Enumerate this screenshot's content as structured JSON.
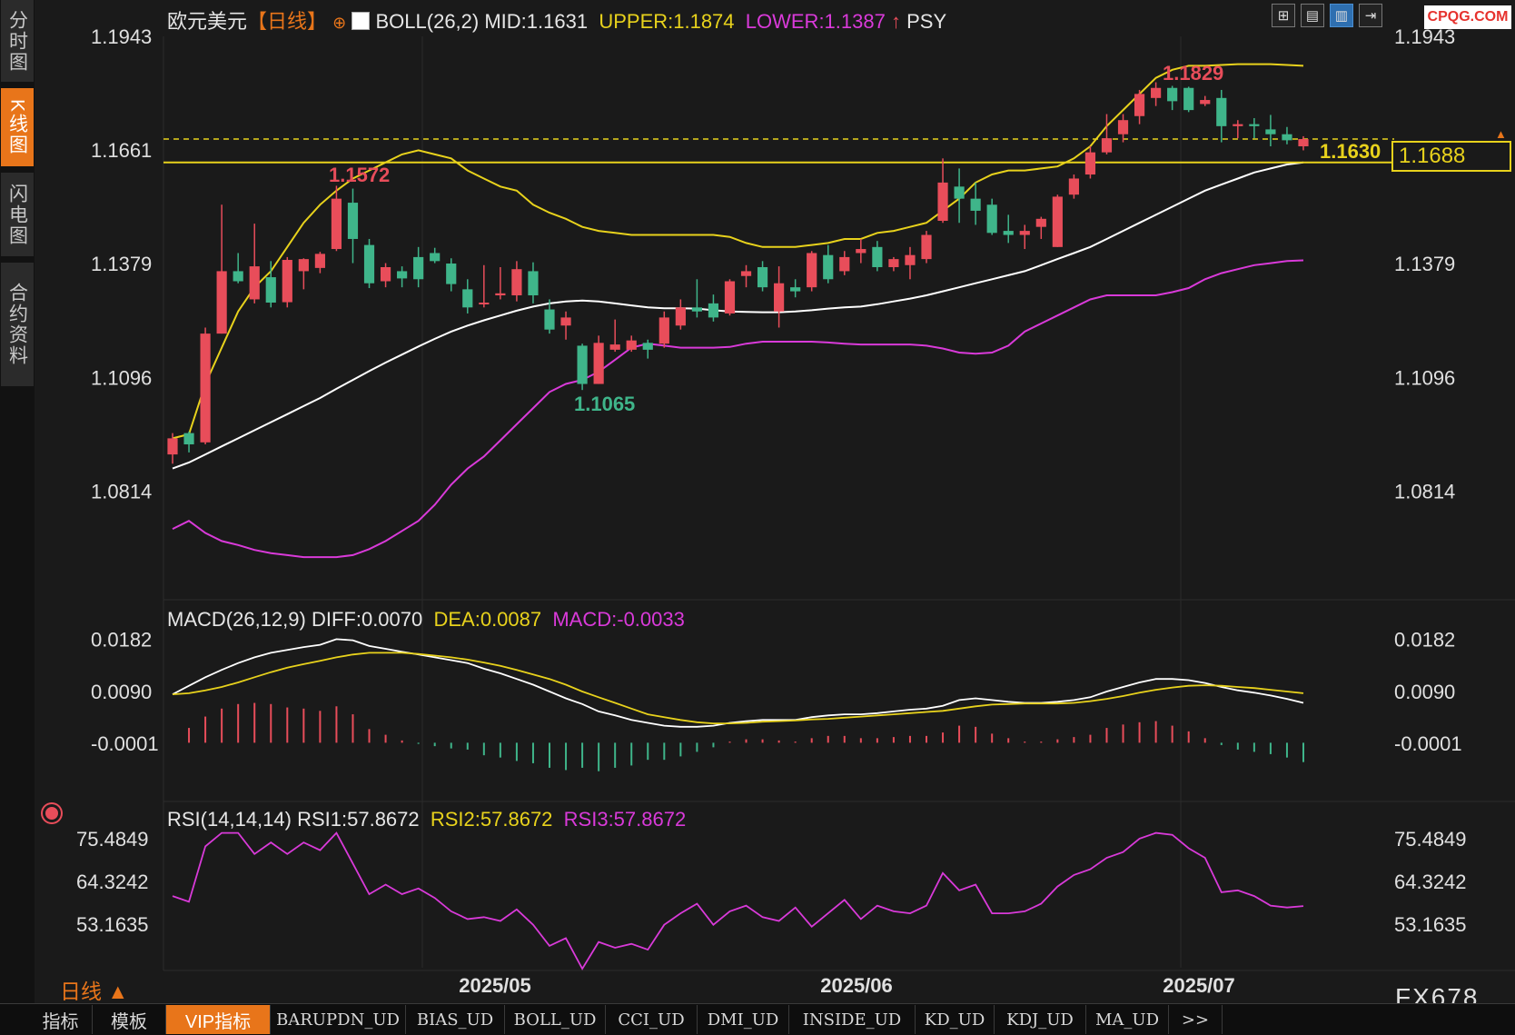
{
  "left_tabs": [
    {
      "label": "分时图",
      "active": false
    },
    {
      "label": "K线图",
      "active": true
    },
    {
      "label": "闪电图",
      "active": false
    },
    {
      "label": "合约资料",
      "active": false
    }
  ],
  "header": {
    "symbol": "欧元美元",
    "period_bracket": "【日线】",
    "indicator": "BOLL(26,2)",
    "mid": "MID:1.1631",
    "upper": "UPPER:1.1874",
    "lower": "LOWER:1.1387",
    "psy": "PSY"
  },
  "toolbar_icons": [
    "grid-layout-icon",
    "chart-layout-icon",
    "chart-active-icon",
    "chart-arrow-icon"
  ],
  "watermark": "CPQG.COM",
  "price_axis": {
    "labels": [
      "1.1943",
      "1.1661",
      "1.1379",
      "1.1096",
      "1.0814"
    ]
  },
  "current_price": "1.1688",
  "annotations": {
    "high": "1.1829",
    "swing_high": "1.1572",
    "low": "1.1065",
    "last": "1.1630"
  },
  "macd": {
    "title": "MACD(26,12,9)",
    "diff": "DIFF:0.0070",
    "dea": "DEA:0.0087",
    "macd": "MACD:-0.0033",
    "axis": [
      "0.0182",
      "0.0090",
      "-0.0001"
    ]
  },
  "rsi": {
    "title": "RSI(14,14,14)",
    "rsi1": "RSI1:57.8672",
    "rsi2": "RSI2:57.8672",
    "rsi3": "RSI3:57.8672",
    "axis": [
      "75.4849",
      "64.3242",
      "53.1635"
    ]
  },
  "x_axis": [
    "2025/05",
    "2025/06",
    "2025/07"
  ],
  "period_label": "日线 ▲",
  "brand": "FX678",
  "bottom_tabs": [
    "指标",
    "模板",
    "VIP指标",
    "BARUPDN_UD",
    "BIAS_UD",
    "BOLL_UD",
    "CCI_UD",
    "DMI_UD",
    "INSIDE_UD",
    "KD_UD",
    "KDJ_UD",
    "MA_UD",
    ">>"
  ],
  "colors": {
    "up": "#e84d5a",
    "down": "#3fb58a",
    "mid": "#ffffff",
    "upper": "#e8d21c",
    "lower": "#d93ad9",
    "accent": "#e8751a"
  },
  "chart_data": {
    "type": "candlestick",
    "candles": [
      [
        1.0905,
        1.0958,
        1.0882,
        1.0945
      ],
      [
        1.0958,
        1.0962,
        1.091,
        1.093
      ],
      [
        1.0935,
        1.122,
        1.093,
        1.1205
      ],
      [
        1.1205,
        1.1525,
        1.1205,
        1.136
      ],
      [
        1.136,
        1.1405,
        1.133,
        1.1335
      ],
      [
        1.129,
        1.1478,
        1.128,
        1.1372
      ],
      [
        1.1345,
        1.1385,
        1.127,
        1.1282
      ],
      [
        1.1283,
        1.1395,
        1.127,
        1.1388
      ],
      [
        1.136,
        1.1392,
        1.1315,
        1.139
      ],
      [
        1.1368,
        1.1408,
        1.1355,
        1.1403
      ],
      [
        1.1415,
        1.1572,
        1.141,
        1.154
      ],
      [
        1.153,
        1.1565,
        1.138,
        1.144
      ],
      [
        1.1425,
        1.144,
        1.1318,
        1.133
      ],
      [
        1.1335,
        1.138,
        1.132,
        1.137
      ],
      [
        1.136,
        1.1372,
        1.132,
        1.1342
      ],
      [
        1.1395,
        1.142,
        1.132,
        1.134
      ],
      [
        1.1405,
        1.1418,
        1.138,
        1.1385
      ],
      [
        1.1379,
        1.1392,
        1.131,
        1.1328
      ],
      [
        1.1315,
        1.134,
        1.1255,
        1.127
      ],
      [
        1.128,
        1.1375,
        1.127,
        1.1282
      ],
      [
        1.13,
        1.137,
        1.129,
        1.1305
      ],
      [
        1.13,
        1.1385,
        1.1285,
        1.1365
      ],
      [
        1.136,
        1.1382,
        1.128,
        1.13
      ],
      [
        1.1265,
        1.129,
        1.1205,
        1.1215
      ],
      [
        1.1225,
        1.126,
        1.119,
        1.1245
      ],
      [
        1.1175,
        1.118,
        1.1065,
        1.108
      ],
      [
        1.108,
        1.12,
        1.108,
        1.1182
      ],
      [
        1.1165,
        1.124,
        1.116,
        1.1178
      ],
      [
        1.1165,
        1.12,
        1.116,
        1.1188
      ],
      [
        1.1182,
        1.119,
        1.1143,
        1.1165
      ],
      [
        1.118,
        1.126,
        1.117,
        1.1245
      ],
      [
        1.1225,
        1.129,
        1.1215,
        1.127
      ],
      [
        1.127,
        1.134,
        1.1245,
        1.126
      ],
      [
        1.128,
        1.1302,
        1.1235,
        1.1245
      ],
      [
        1.1255,
        1.134,
        1.125,
        1.1335
      ],
      [
        1.1348,
        1.1375,
        1.132,
        1.136
      ],
      [
        1.137,
        1.1385,
        1.131,
        1.132
      ],
      [
        1.126,
        1.1372,
        1.122,
        1.133
      ],
      [
        1.132,
        1.134,
        1.1295,
        1.131
      ],
      [
        1.132,
        1.141,
        1.131,
        1.1405
      ],
      [
        1.14,
        1.1425,
        1.133,
        1.134
      ],
      [
        1.136,
        1.141,
        1.135,
        1.1395
      ],
      [
        1.1405,
        1.144,
        1.138,
        1.1415
      ],
      [
        1.142,
        1.1435,
        1.136,
        1.137
      ],
      [
        1.137,
        1.1395,
        1.136,
        1.139
      ],
      [
        1.1375,
        1.142,
        1.134,
        1.14
      ],
      [
        1.139,
        1.146,
        1.138,
        1.145
      ],
      [
        1.1485,
        1.164,
        1.148,
        1.158
      ],
      [
        1.157,
        1.1615,
        1.148,
        1.154
      ],
      [
        1.154,
        1.158,
        1.1475,
        1.151
      ],
      [
        1.1525,
        1.154,
        1.145,
        1.1455
      ],
      [
        1.146,
        1.15,
        1.143,
        1.145
      ],
      [
        1.145,
        1.1475,
        1.1415,
        1.146
      ],
      [
        1.147,
        1.1495,
        1.144,
        1.149
      ],
      [
        1.142,
        1.155,
        1.142,
        1.1545
      ],
      [
        1.155,
        1.16,
        1.154,
        1.159
      ],
      [
        1.16,
        1.167,
        1.159,
        1.1655
      ],
      [
        1.1655,
        1.175,
        1.165,
        1.169
      ],
      [
        1.17,
        1.175,
        1.168,
        1.1735
      ],
      [
        1.1745,
        1.181,
        1.1725,
        1.18
      ],
      [
        1.179,
        1.1829,
        1.177,
        1.1815
      ],
      [
        1.1815,
        1.182,
        1.176,
        1.1782
      ],
      [
        1.1815,
        1.1818,
        1.1755,
        1.176
      ],
      [
        1.1775,
        1.1795,
        1.177,
        1.1785
      ],
      [
        1.179,
        1.181,
        1.168,
        1.172
      ],
      [
        1.172,
        1.1735,
        1.169,
        1.1725
      ],
      [
        1.1725,
        1.174,
        1.169,
        1.172
      ],
      [
        1.1712,
        1.1748,
        1.167,
        1.17
      ],
      [
        1.17,
        1.1718,
        1.1675,
        1.1685
      ],
      [
        1.167,
        1.1695,
        1.166,
        1.1688
      ]
    ],
    "boll_mid": [
      1.087,
      1.0885,
      1.0905,
      1.0925,
      1.0945,
      1.0965,
      1.0985,
      1.1005,
      1.1025,
      1.1045,
      1.1068,
      1.109,
      1.1112,
      1.1133,
      1.1153,
      1.1173,
      1.1192,
      1.121,
      1.1225,
      1.1238,
      1.125,
      1.1262,
      1.1272,
      1.128,
      1.1285,
      1.1287,
      1.1285,
      1.128,
      1.1275,
      1.127,
      1.1268,
      1.1268,
      1.1267,
      1.1263,
      1.126,
      1.1259,
      1.1258,
      1.1258,
      1.126,
      1.1263,
      1.1267,
      1.127,
      1.1272,
      1.1278,
      1.1285,
      1.1292,
      1.13,
      1.131,
      1.132,
      1.133,
      1.134,
      1.135,
      1.136,
      1.1375,
      1.139,
      1.1405,
      1.142,
      1.144,
      1.146,
      1.148,
      1.15,
      1.152,
      1.154,
      1.156,
      1.1575,
      1.159,
      1.1605,
      1.1615,
      1.1625,
      1.163
    ],
    "boll_upper": [
      1.0945,
      1.0955,
      1.108,
      1.117,
      1.126,
      1.132,
      1.136,
      1.142,
      1.148,
      1.1525,
      1.156,
      1.159,
      1.161,
      1.163,
      1.165,
      1.166,
      1.165,
      1.164,
      1.161,
      1.159,
      1.157,
      1.156,
      1.1525,
      1.1505,
      1.149,
      1.147,
      1.146,
      1.1455,
      1.145,
      1.145,
      1.145,
      1.145,
      1.145,
      1.145,
      1.1445,
      1.143,
      1.142,
      1.142,
      1.142,
      1.1425,
      1.143,
      1.144,
      1.144,
      1.1455,
      1.146,
      1.147,
      1.148,
      1.151,
      1.154,
      1.158,
      1.16,
      1.161,
      1.161,
      1.1615,
      1.162,
      1.164,
      1.167,
      1.172,
      1.176,
      1.18,
      1.184,
      1.186,
      1.187,
      1.187,
      1.1872,
      1.1874,
      1.1874,
      1.1874,
      1.1872,
      1.187
    ],
    "boll_lower": [
      1.072,
      1.074,
      1.071,
      1.069,
      1.068,
      1.0668,
      1.066,
      1.0655,
      1.065,
      1.065,
      1.065,
      1.0655,
      1.067,
      1.069,
      1.0715,
      1.074,
      1.078,
      1.083,
      1.087,
      1.09,
      1.094,
      1.098,
      1.102,
      1.106,
      1.108,
      1.109,
      1.111,
      1.114,
      1.117,
      1.118,
      1.1175,
      1.117,
      1.117,
      1.117,
      1.1172,
      1.118,
      1.1185,
      1.1185,
      1.1185,
      1.1185,
      1.1183,
      1.118,
      1.1178,
      1.1178,
      1.1178,
      1.1178,
      1.1175,
      1.1168,
      1.1158,
      1.1155,
      1.1158,
      1.1175,
      1.121,
      1.123,
      1.125,
      1.127,
      1.129,
      1.13,
      1.13,
      1.13,
      1.13,
      1.1308,
      1.1318,
      1.134,
      1.1355,
      1.1365,
      1.1375,
      1.138,
      1.1385,
      1.1387
    ],
    "diff": [
      0.0085,
      0.01,
      0.0115,
      0.0128,
      0.014,
      0.015,
      0.0158,
      0.0163,
      0.0168,
      0.0172,
      0.0182,
      0.018,
      0.017,
      0.0165,
      0.016,
      0.0155,
      0.015,
      0.0145,
      0.014,
      0.013,
      0.0122,
      0.0112,
      0.0102,
      0.009,
      0.0078,
      0.0068,
      0.0055,
      0.0048,
      0.004,
      0.0035,
      0.003,
      0.0028,
      0.0028,
      0.003,
      0.0035,
      0.0038,
      0.004,
      0.004,
      0.004,
      0.0045,
      0.0048,
      0.005,
      0.005,
      0.0052,
      0.0055,
      0.0058,
      0.006,
      0.0065,
      0.0075,
      0.0078,
      0.0075,
      0.0072,
      0.007,
      0.007,
      0.0072,
      0.0075,
      0.008,
      0.009,
      0.0098,
      0.0106,
      0.0112,
      0.0112,
      0.011,
      0.0105,
      0.0098,
      0.0092,
      0.0088,
      0.0083,
      0.0077,
      0.007
    ],
    "dea": [
      0.0085,
      0.0087,
      0.0092,
      0.0098,
      0.0106,
      0.0115,
      0.0124,
      0.0132,
      0.0138,
      0.0144,
      0.015,
      0.0155,
      0.0158,
      0.0158,
      0.0158,
      0.0156,
      0.0153,
      0.015,
      0.0146,
      0.0141,
      0.0135,
      0.0128,
      0.012,
      0.0112,
      0.0102,
      0.009,
      0.008,
      0.007,
      0.006,
      0.005,
      0.0045,
      0.004,
      0.0036,
      0.0034,
      0.0034,
      0.0035,
      0.0037,
      0.0038,
      0.0039,
      0.0041,
      0.0042,
      0.0044,
      0.0046,
      0.0048,
      0.005,
      0.0052,
      0.0054,
      0.0056,
      0.006,
      0.0064,
      0.0067,
      0.0068,
      0.0069,
      0.0069,
      0.0069,
      0.007,
      0.0073,
      0.0077,
      0.0082,
      0.0088,
      0.0093,
      0.0097,
      0.01,
      0.0101,
      0.01,
      0.0098,
      0.0096,
      0.0093,
      0.009,
      0.0087
    ],
    "rsi": [
      60.5,
      59.0,
      73.5,
      77.0,
      77.0,
      71.5,
      74.5,
      71.5,
      74.5,
      72.5,
      77.0,
      69.0,
      61.0,
      63.5,
      61.0,
      62.5,
      60.0,
      56.5,
      54.5,
      55.0,
      54.0,
      57.0,
      53.0,
      47.5,
      49.5,
      41.5,
      48.5,
      47.0,
      48.0,
      46.5,
      53.0,
      56.0,
      58.5,
      53.0,
      56.5,
      58.0,
      55.0,
      54.0,
      57.5,
      52.5,
      56.0,
      59.5,
      54.5,
      58.0,
      56.5,
      56.0,
      58.0,
      66.5,
      62.0,
      63.5,
      56.0,
      56.0,
      56.5,
      58.5,
      63.0,
      66.0,
      67.5,
      70.5,
      72.0,
      75.5,
      77.0,
      76.5,
      73.0,
      70.5,
      61.5,
      62.0,
      60.5,
      58.0,
      57.5,
      57.9
    ]
  }
}
